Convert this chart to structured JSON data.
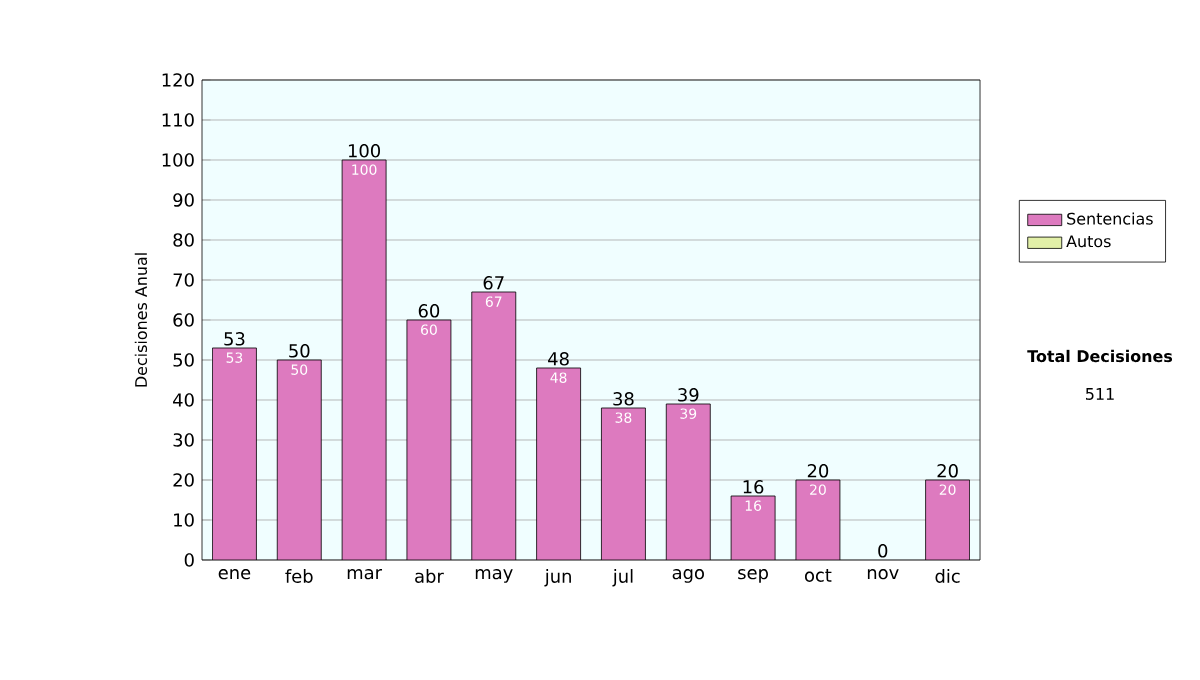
{
  "chart_data": {
    "type": "bar",
    "stacked": true,
    "ylabel": "Decisiones Anual",
    "categories": [
      "ene",
      "feb",
      "mar",
      "abr",
      "may",
      "jun",
      "jul",
      "ago",
      "sep",
      "oct",
      "nov",
      "dic"
    ],
    "series": [
      {
        "name": "Sentencias",
        "color": "#dd7abf",
        "values": [
          53,
          50,
          100,
          60,
          67,
          48,
          38,
          39,
          16,
          20,
          0,
          20
        ],
        "value_labels": [
          "53",
          "50",
          "100",
          "60",
          "67",
          "48",
          "38",
          "39",
          "16",
          "20",
          null,
          "20"
        ]
      },
      {
        "name": "Autos",
        "color": "#e2f0a8",
        "values": [
          0,
          0,
          0,
          0,
          0,
          0,
          0,
          0,
          0,
          0,
          0,
          0
        ]
      }
    ],
    "totals": [
      "53",
      "50",
      "100",
      "60",
      "67",
      "48",
      "38",
      "39",
      "16",
      "20",
      "0",
      "20"
    ],
    "ylim": [
      0,
      120
    ],
    "yticks": [
      0,
      10,
      20,
      30,
      40,
      50,
      60,
      70,
      80,
      90,
      100,
      110,
      120
    ],
    "grid": "y",
    "legend": "right",
    "annotations": [
      "Total Decisiones",
      "511"
    ]
  }
}
